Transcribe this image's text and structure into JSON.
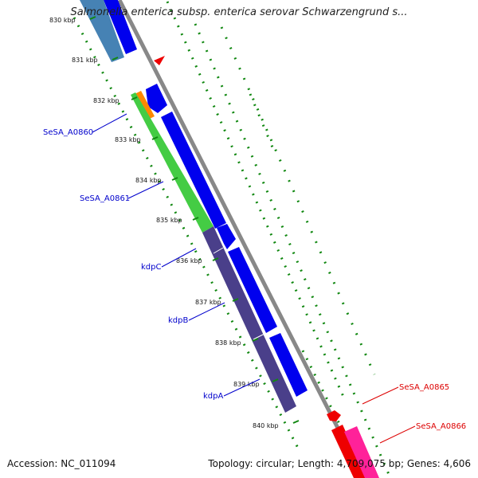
{
  "viewer": {
    "title": "Salmonella enterica subsp. enterica serovar Schwarzengrund s...",
    "accession": "Accession: NC_011094",
    "summary": "Topology: circular; Length: 4,709,075 bp; Genes: 4,606"
  },
  "ticks": [
    "830 kbp",
    "831 kbp",
    "832 kbp",
    "833 kbp",
    "834 kbp",
    "835 kbp",
    "836 kbp",
    "837 kbp",
    "838 kbp",
    "839 kbp",
    "840 kbp"
  ],
  "genes": [
    {
      "name": "SeSA_A0860",
      "color": "#0000cc"
    },
    {
      "name": "SeSA_A0861",
      "color": "#0000cc"
    },
    {
      "name": "kdpC",
      "color": "#0000cc"
    },
    {
      "name": "kdpB",
      "color": "#0000cc"
    },
    {
      "name": "kdpA",
      "color": "#0000cc"
    },
    {
      "name": "SeSA_A0865",
      "color": "#dd0000"
    },
    {
      "name": "SeSA_A0866",
      "color": "#dd0000"
    }
  ],
  "colors": {
    "forward_strand": "#0000ee",
    "cog_green": "#44cc44",
    "cog_orange": "#ff8800",
    "cog_purple": "#4a3f8a",
    "cog_steelblue": "#4682b4",
    "reverse_red": "#ee0000",
    "reverse_pink": "#ff2299",
    "backbone": "#888888",
    "dots": "#118811"
  }
}
